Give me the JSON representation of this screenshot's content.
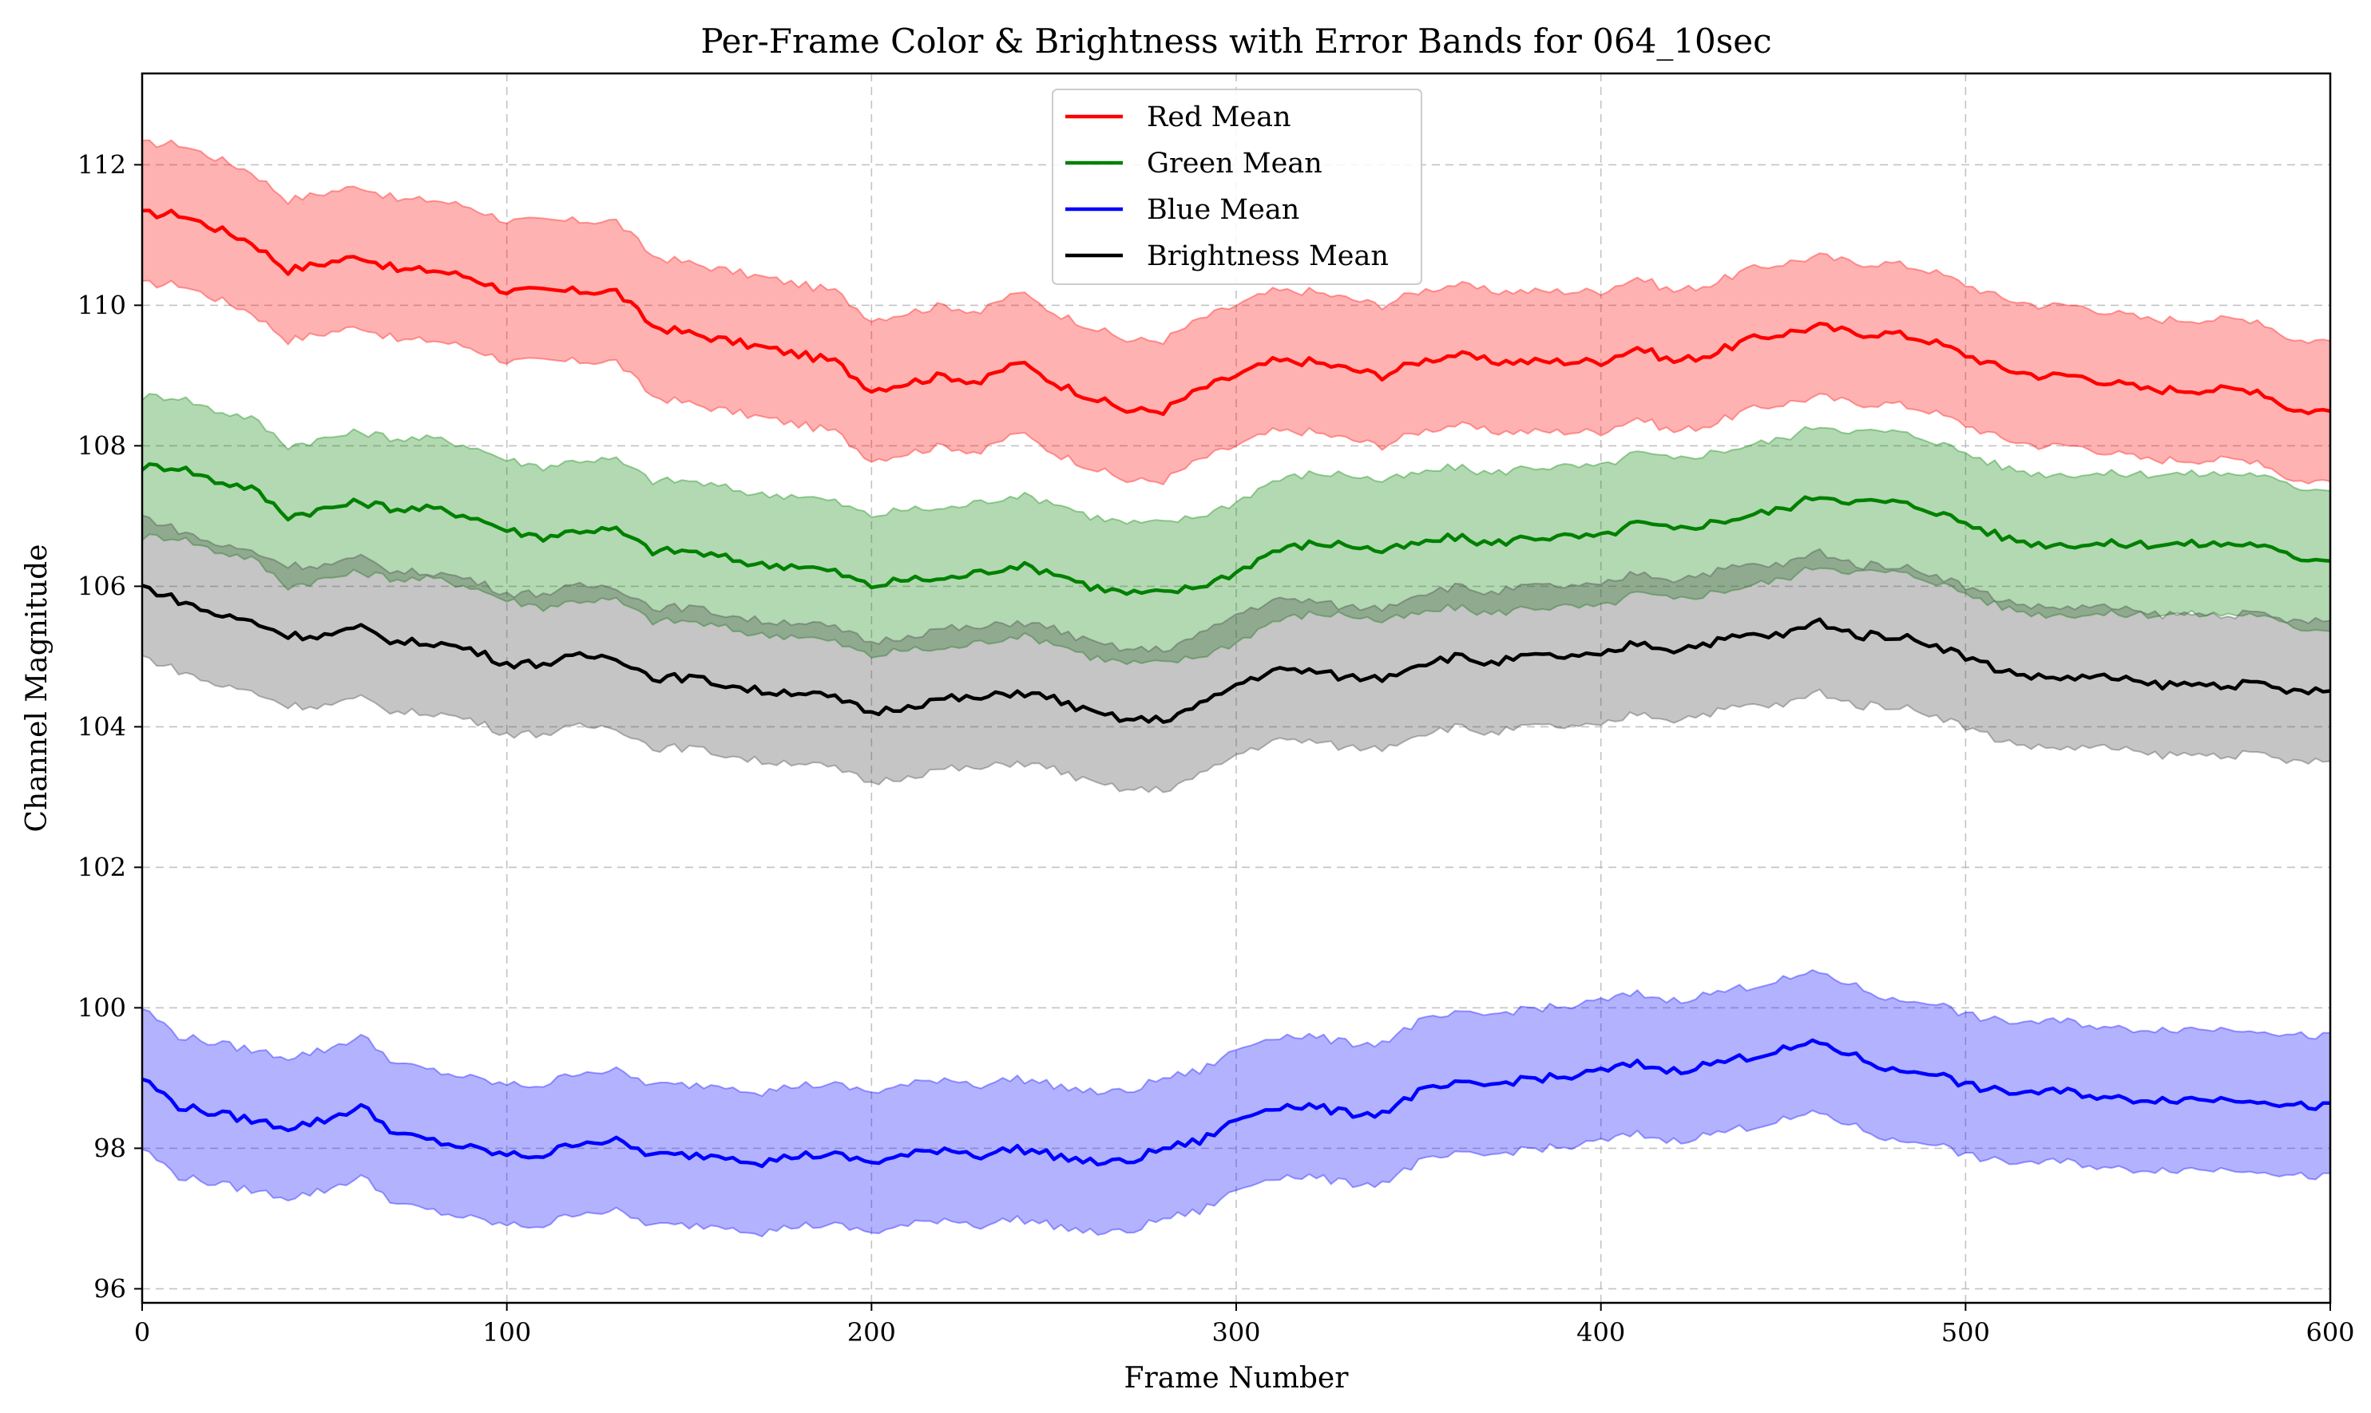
{
  "chart_data": {
    "type": "line",
    "title": "Per-Frame Color & Brightness with Error Bands for 064_10sec",
    "xlabel": "Frame Number",
    "ylabel": "Channel Magnitude",
    "xlim": [
      0,
      600
    ],
    "ylim": [
      95.8,
      113.3
    ],
    "xticks": [
      0,
      100,
      200,
      300,
      400,
      500,
      600
    ],
    "yticks": [
      96,
      98,
      100,
      102,
      104,
      106,
      108,
      110,
      112
    ],
    "grid": true,
    "grid_style": "dashed",
    "legend_position": "top-center",
    "band_halfwidth": 1.0,
    "x": [
      0,
      10,
      20,
      30,
      40,
      50,
      60,
      70,
      80,
      90,
      100,
      110,
      120,
      130,
      140,
      150,
      160,
      170,
      180,
      190,
      200,
      210,
      220,
      230,
      240,
      250,
      260,
      270,
      280,
      290,
      300,
      310,
      320,
      330,
      340,
      350,
      360,
      370,
      380,
      390,
      400,
      410,
      420,
      430,
      440,
      450,
      460,
      470,
      480,
      490,
      500,
      510,
      520,
      530,
      540,
      550,
      560,
      570,
      580,
      590,
      600
    ],
    "series": [
      {
        "name": "Red Mean",
        "color": "#ff0000",
        "band_color": "#ff0000",
        "values": [
          111.3,
          111.3,
          111.1,
          110.9,
          110.5,
          110.6,
          110.7,
          110.5,
          110.5,
          110.4,
          110.2,
          110.2,
          110.2,
          110.2,
          109.7,
          109.6,
          109.5,
          109.4,
          109.3,
          109.2,
          108.8,
          108.9,
          109.0,
          108.9,
          109.2,
          108.9,
          108.7,
          108.5,
          108.5,
          108.8,
          109.0,
          109.2,
          109.2,
          109.1,
          109.0,
          109.2,
          109.3,
          109.2,
          109.2,
          109.2,
          109.2,
          109.4,
          109.2,
          109.3,
          109.5,
          109.6,
          109.7,
          109.6,
          109.6,
          109.5,
          109.3,
          109.1,
          109.0,
          109.0,
          108.9,
          108.8,
          108.8,
          108.8,
          108.8,
          108.5,
          108.5
        ]
      },
      {
        "name": "Green Mean",
        "color": "#008000",
        "band_color": "#008000",
        "values": [
          107.7,
          107.7,
          107.5,
          107.4,
          107.0,
          107.1,
          107.2,
          107.1,
          107.1,
          107.0,
          106.8,
          106.7,
          106.8,
          106.8,
          106.5,
          106.5,
          106.4,
          106.3,
          106.3,
          106.2,
          106.0,
          106.1,
          106.1,
          106.2,
          106.3,
          106.2,
          106.0,
          105.9,
          105.9,
          106.0,
          106.2,
          106.5,
          106.6,
          106.6,
          106.5,
          106.6,
          106.7,
          106.6,
          106.7,
          106.7,
          106.7,
          106.9,
          106.8,
          106.9,
          107.0,
          107.1,
          107.3,
          107.2,
          107.2,
          107.1,
          106.9,
          106.7,
          106.6,
          106.6,
          106.6,
          106.6,
          106.6,
          106.6,
          106.6,
          106.4,
          106.4
        ]
      },
      {
        "name": "Blue Mean",
        "color": "#0000ff",
        "band_color": "#0000ff",
        "values": [
          99.0,
          98.6,
          98.5,
          98.4,
          98.3,
          98.4,
          98.6,
          98.2,
          98.1,
          98.0,
          97.9,
          97.9,
          98.1,
          98.1,
          97.9,
          97.9,
          97.9,
          97.8,
          97.9,
          97.9,
          97.8,
          97.9,
          98.0,
          97.9,
          98.0,
          97.9,
          97.8,
          97.8,
          98.0,
          98.1,
          98.4,
          98.6,
          98.6,
          98.5,
          98.5,
          98.8,
          98.9,
          98.9,
          99.0,
          99.0,
          99.1,
          99.2,
          99.1,
          99.2,
          99.3,
          99.4,
          99.5,
          99.3,
          99.1,
          99.1,
          98.9,
          98.8,
          98.8,
          98.8,
          98.7,
          98.7,
          98.7,
          98.7,
          98.7,
          98.6,
          98.6
        ]
      },
      {
        "name": "Brightness Mean",
        "color": "#000000",
        "band_color": "#404040",
        "values": [
          106.0,
          105.8,
          105.6,
          105.5,
          105.3,
          105.3,
          105.4,
          105.2,
          105.2,
          105.1,
          104.9,
          104.9,
          105.0,
          105.0,
          104.7,
          104.7,
          104.6,
          104.5,
          104.5,
          104.4,
          104.2,
          104.3,
          104.4,
          104.4,
          104.5,
          104.4,
          104.2,
          104.1,
          104.1,
          104.3,
          104.6,
          104.8,
          104.8,
          104.7,
          104.7,
          104.9,
          105.0,
          104.9,
          105.0,
          105.0,
          105.0,
          105.2,
          105.1,
          105.2,
          105.3,
          105.3,
          105.5,
          105.3,
          105.3,
          105.2,
          105.0,
          104.8,
          104.7,
          104.7,
          104.7,
          104.6,
          104.6,
          104.6,
          104.6,
          104.5,
          104.5
        ]
      }
    ]
  }
}
